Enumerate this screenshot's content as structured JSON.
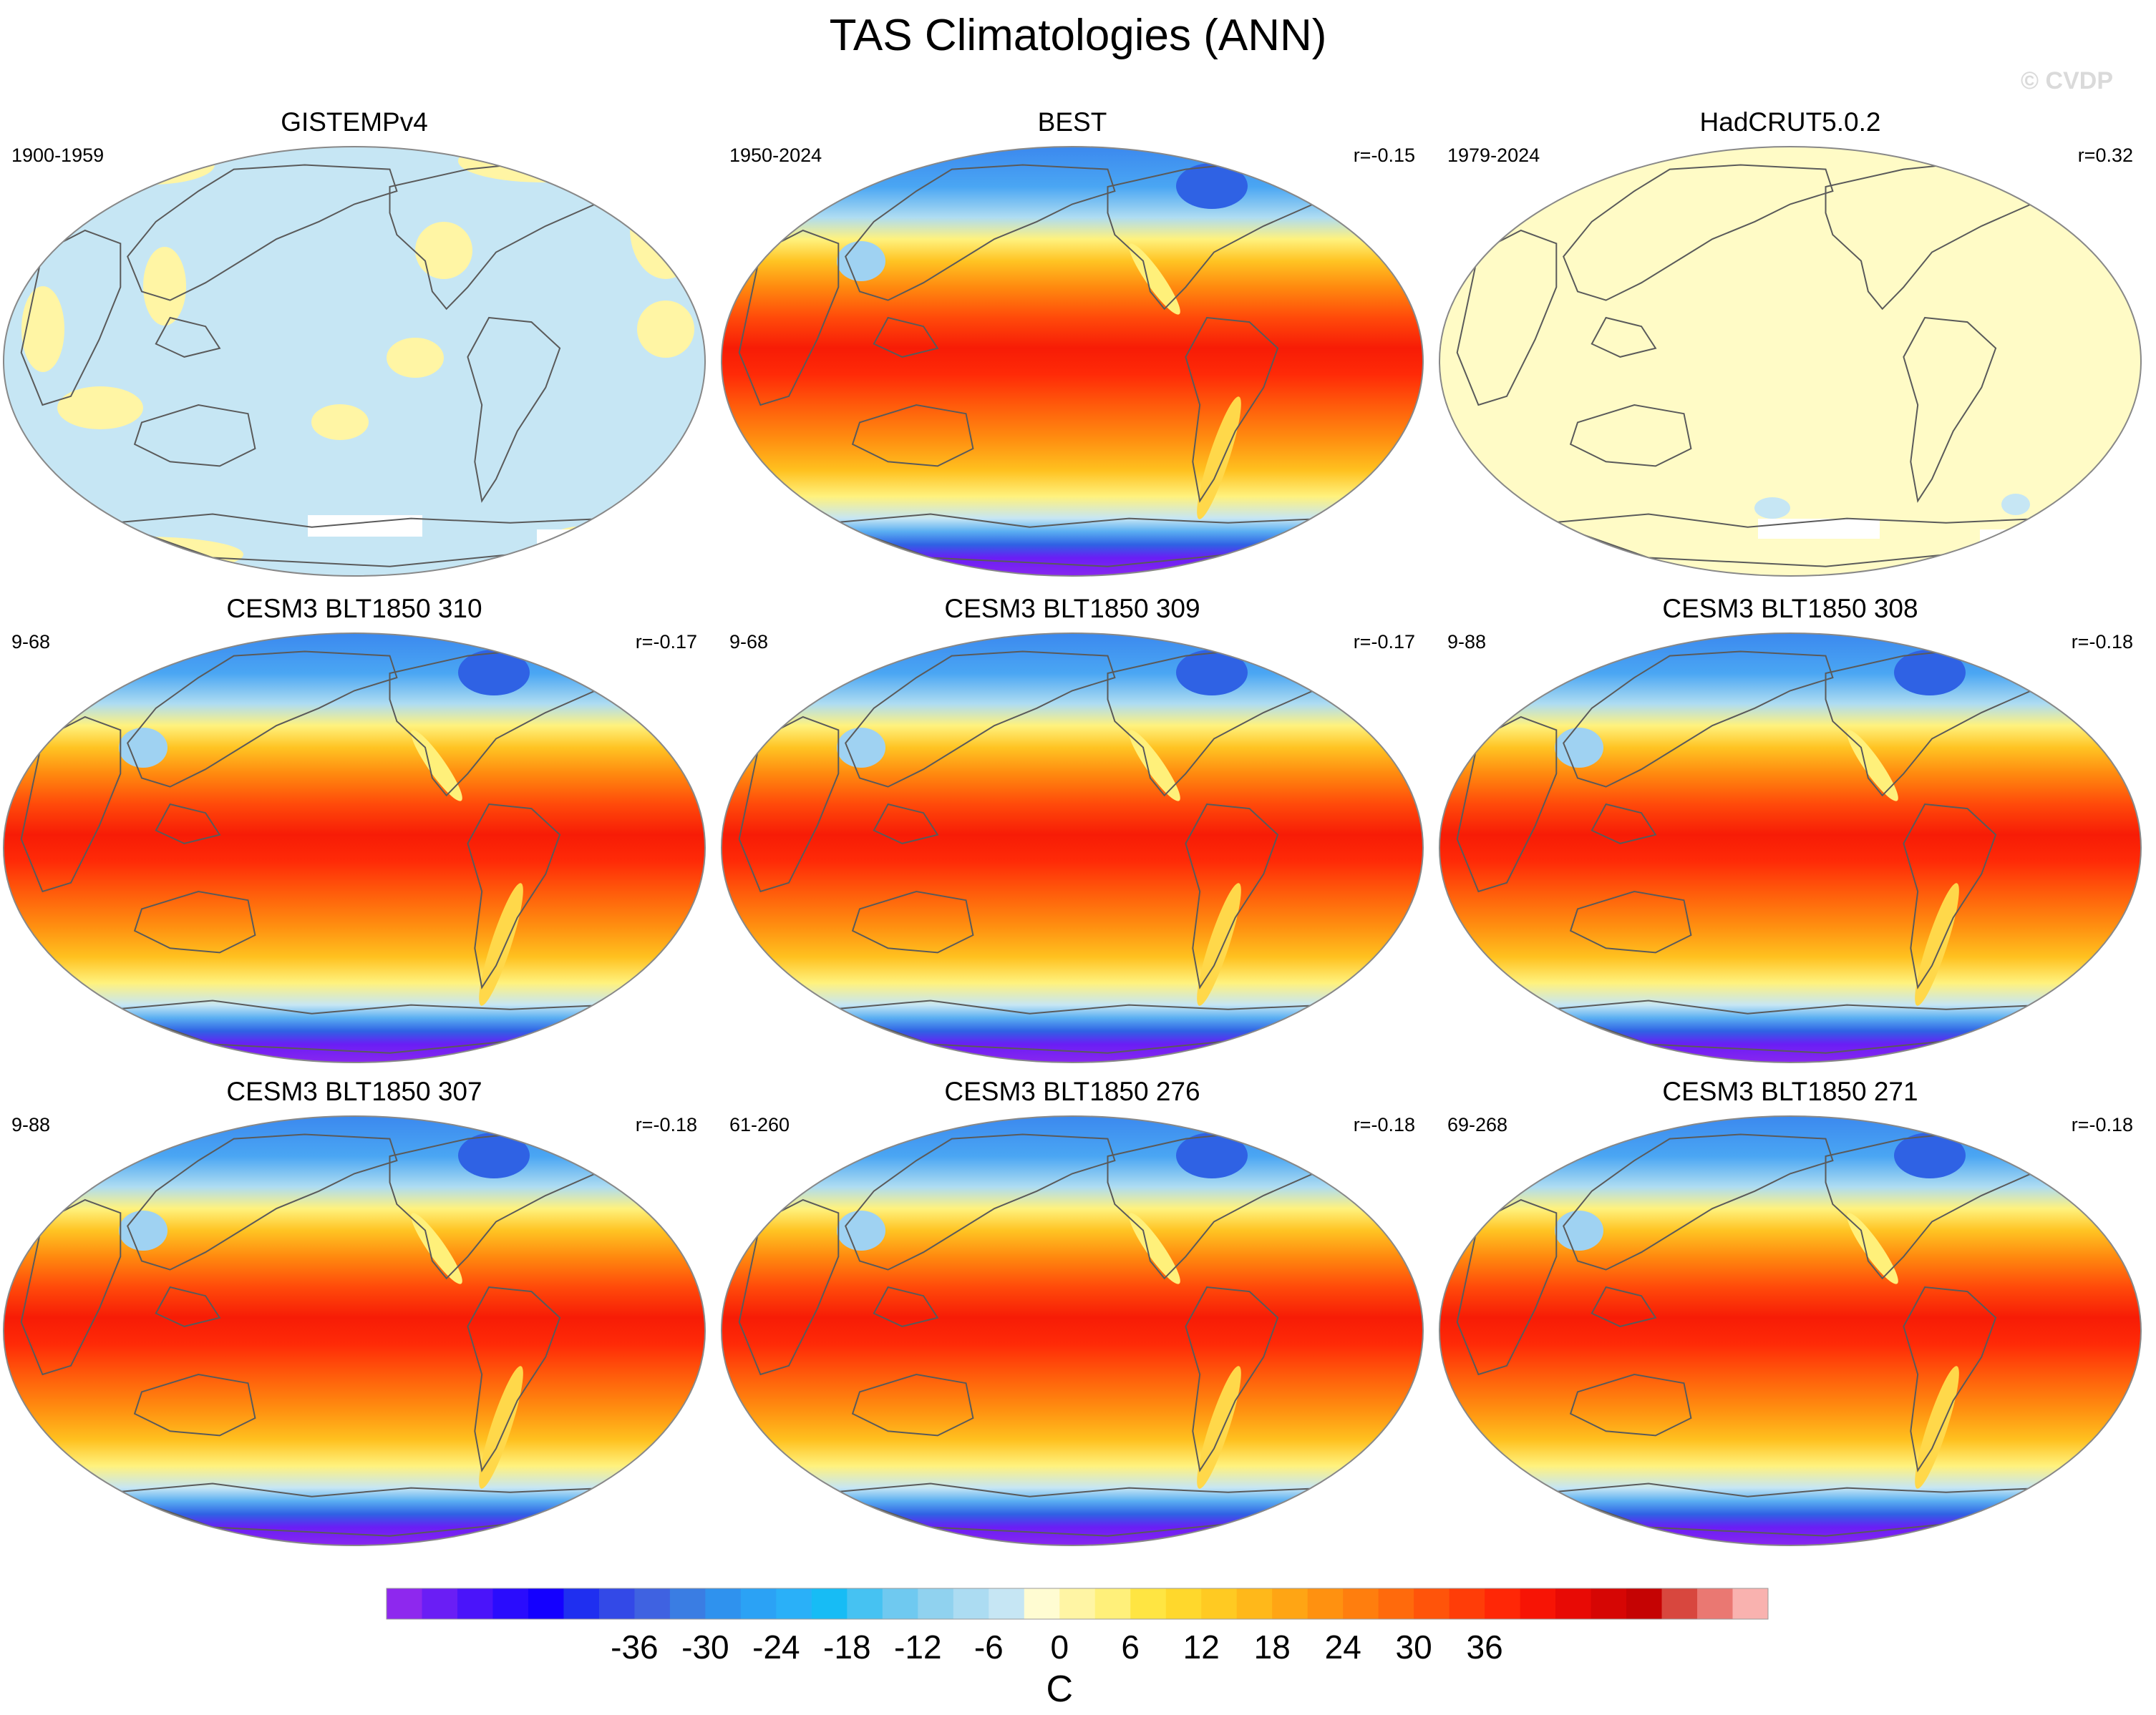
{
  "title": "TAS Climatologies (ANN)",
  "watermark": "© CVDP",
  "panels": [
    {
      "title": "GISTEMPv4",
      "left": "1900-1959",
      "right": "",
      "style": "anom"
    },
    {
      "title": "BEST",
      "left": "1950-2024",
      "right": "r=-0.15",
      "style": "clim"
    },
    {
      "title": "HadCRUT5.0.2",
      "left": "1979-2024",
      "right": "r=0.32",
      "style": "yellow"
    },
    {
      "title": "CESM3 BLT1850 310",
      "left": "9-68",
      "right": "r=-0.17",
      "style": "clim"
    },
    {
      "title": "CESM3 BLT1850 309",
      "left": "9-68",
      "right": "r=-0.17",
      "style": "clim"
    },
    {
      "title": "CESM3 BLT1850 308",
      "left": "9-88",
      "right": "r=-0.18",
      "style": "clim"
    },
    {
      "title": "CESM3 BLT1850 307",
      "left": "9-88",
      "right": "r=-0.18",
      "style": "clim"
    },
    {
      "title": "CESM3 BLT1850 276",
      "left": "61-260",
      "right": "r=-0.18",
      "style": "clim"
    },
    {
      "title": "CESM3 BLT1850 271",
      "left": "69-268",
      "right": "r=-0.18",
      "style": "clim"
    }
  ],
  "colorbar": {
    "label": "C",
    "tick_labels": [
      "-36",
      "-30",
      "-24",
      "-18",
      "-12",
      "-6",
      "0",
      "6",
      "12",
      "18",
      "24",
      "30",
      "36"
    ],
    "colors": [
      "#8e28ee",
      "#6a1ef5",
      "#4a14fa",
      "#2a0cfd",
      "#1400ff",
      "#1f2ff0",
      "#3349e7",
      "#3f62e1",
      "#3a7de3",
      "#2f92ee",
      "#2ba2f5",
      "#2ab0f8",
      "#17bcf5",
      "#46c2f2",
      "#6fc9f0",
      "#90d2ef",
      "#acdcf2",
      "#c6e6f4",
      "#fffcd2",
      "#fff5a4",
      "#fff07a",
      "#ffe542",
      "#ffd82c",
      "#ffca22",
      "#ffb81a",
      "#ffa514",
      "#ff9110",
      "#ff7e0e",
      "#ff6a0c",
      "#ff540a",
      "#ff3d08",
      "#ff2706",
      "#f71405",
      "#e80a05",
      "#d60604",
      "#c50303",
      "#d8473e",
      "#ea7872",
      "#f9b2af"
    ]
  }
}
